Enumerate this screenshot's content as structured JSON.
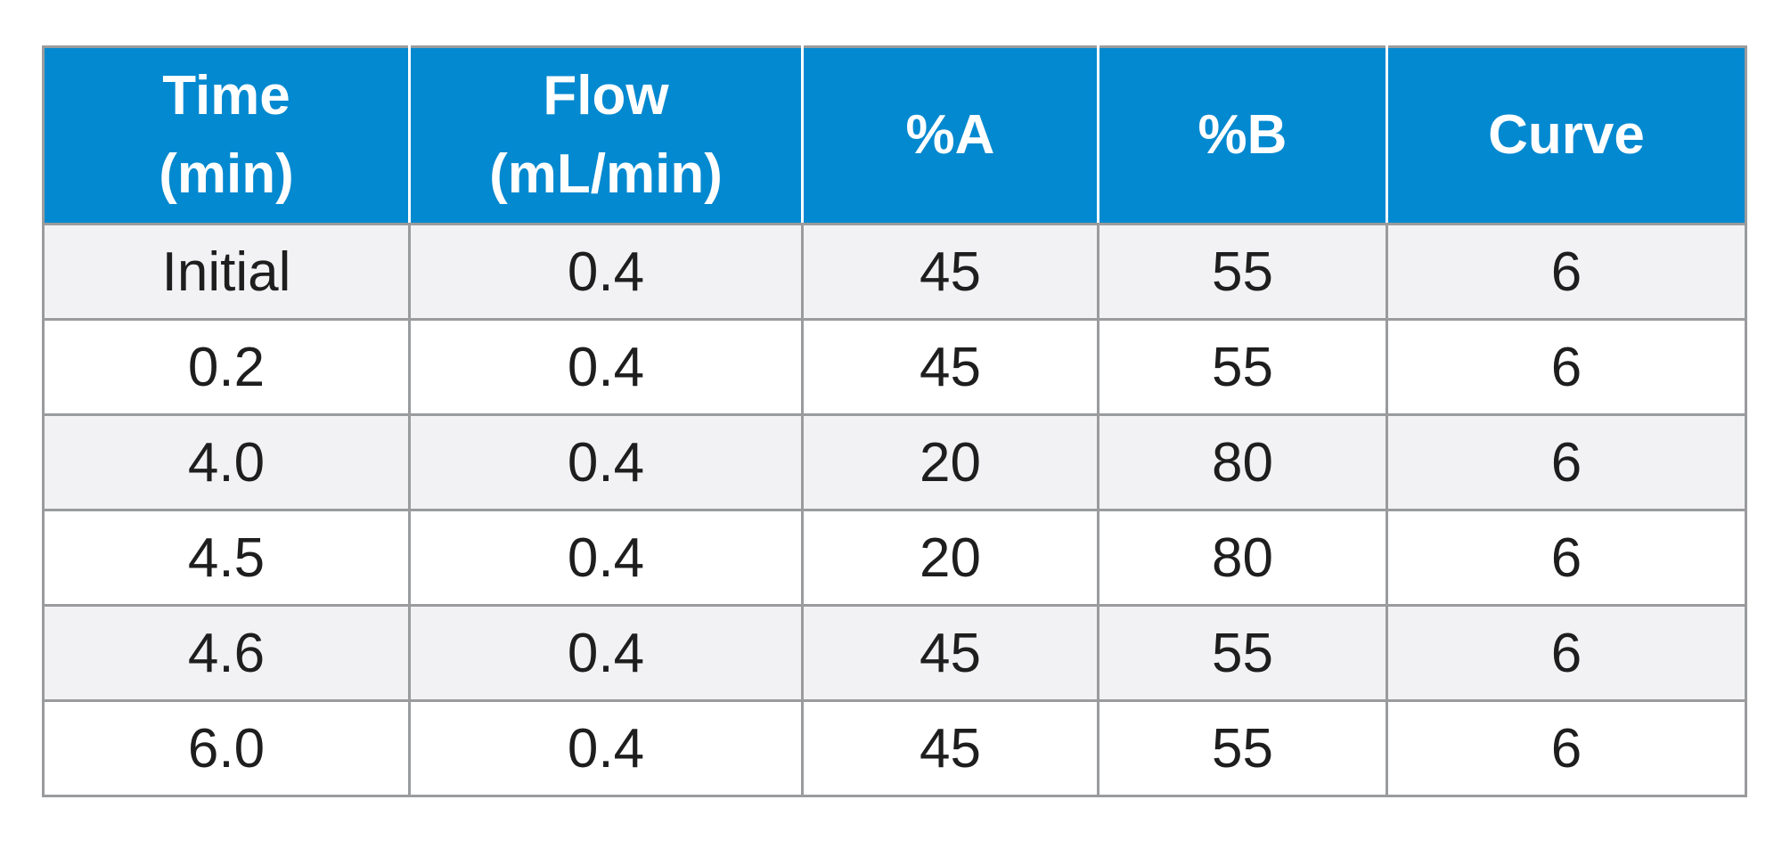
{
  "table": {
    "header_color": "#0389d0",
    "columns": [
      {
        "line1": "Time",
        "line2": "(min)"
      },
      {
        "line1": "Flow",
        "line2": "(mL/min)"
      },
      {
        "line1": "%A",
        "line2": ""
      },
      {
        "line1": "%B",
        "line2": ""
      },
      {
        "line1": "Curve",
        "line2": ""
      }
    ],
    "rows": [
      [
        "Initial",
        "0.4",
        "45",
        "55",
        "6"
      ],
      [
        "0.2",
        "0.4",
        "45",
        "55",
        "6"
      ],
      [
        "4.0",
        "0.4",
        "20",
        "80",
        "6"
      ],
      [
        "4.5",
        "0.4",
        "20",
        "80",
        "6"
      ],
      [
        "4.6",
        "0.4",
        "45",
        "55",
        "6"
      ],
      [
        "6.0",
        "0.4",
        "45",
        "55",
        "6"
      ]
    ]
  }
}
